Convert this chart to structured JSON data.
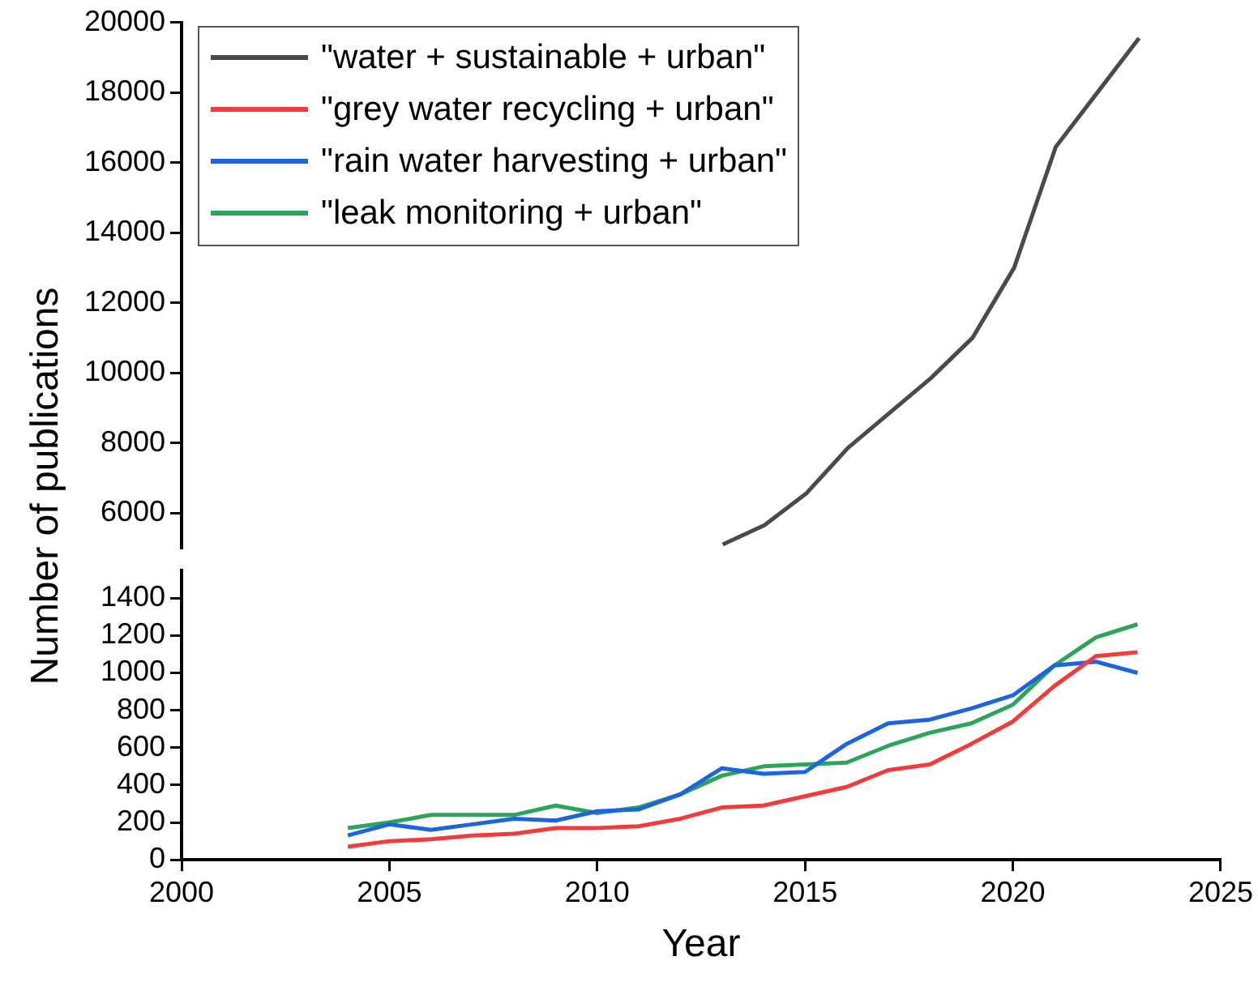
{
  "chart_data": [
    {
      "type": "line",
      "ylabel": "Number of publications",
      "xlim": [
        2000,
        2025
      ],
      "ylim": [
        5000,
        20000
      ],
      "yticks": [
        6000,
        8000,
        10000,
        12000,
        14000,
        16000,
        18000,
        20000
      ],
      "tick_labels": "y",
      "grid": false,
      "legend": "top left",
      "marker": "none",
      "line_style": "solid",
      "series": [
        {
          "name": "\"water + sustainable + urban\"",
          "color": "#4a4a4a",
          "x": [
            2013,
            2014,
            2015,
            2016,
            2017,
            2018,
            2019,
            2020,
            2021,
            2022,
            2023
          ],
          "values": [
            5100,
            5650,
            6550,
            7850,
            8850,
            9850,
            11000,
            13000,
            16450,
            18000,
            19550
          ]
        }
      ]
    },
    {
      "type": "line",
      "xlabel": "Year",
      "x": [
        2004,
        2005,
        2006,
        2007,
        2008,
        2009,
        2010,
        2011,
        2012,
        2013,
        2014,
        2015,
        2016,
        2017,
        2018,
        2019,
        2020,
        2021,
        2022,
        2023
      ],
      "xlim": [
        2000,
        2025
      ],
      "xticks": [
        2000,
        2005,
        2010,
        2015,
        2020,
        2025
      ],
      "ylim": [
        0,
        1550
      ],
      "yticks": [
        0,
        200,
        400,
        600,
        800,
        1000,
        1200,
        1400
      ],
      "grid": false,
      "legend": "top left",
      "marker": "none",
      "line_style": "solid",
      "series": [
        {
          "name": "\"grey water recycling + urban\"",
          "color": "#f23c3c",
          "values": [
            70,
            100,
            110,
            130,
            140,
            170,
            170,
            180,
            220,
            280,
            290,
            340,
            390,
            480,
            510,
            620,
            740,
            930,
            1090,
            1110
          ]
        },
        {
          "name": "\"rain water harvesting + urban\"",
          "color": "#1e64dc",
          "values": [
            130,
            190,
            160,
            190,
            220,
            210,
            260,
            270,
            350,
            490,
            460,
            470,
            620,
            730,
            750,
            810,
            880,
            1040,
            1060,
            1000
          ]
        },
        {
          "name": "\"leak monitoring + urban\"",
          "color": "#2ca55a",
          "values": [
            170,
            200,
            240,
            240,
            240,
            290,
            250,
            280,
            350,
            450,
            500,
            510,
            520,
            610,
            680,
            730,
            830,
            1040,
            1190,
            1260
          ]
        }
      ]
    }
  ]
}
